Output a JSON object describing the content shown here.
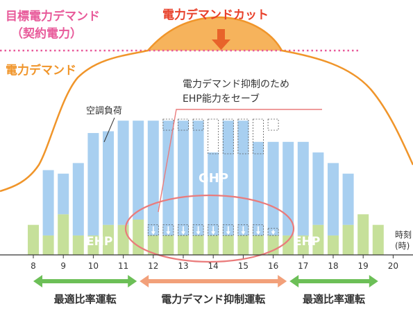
{
  "chart_data": {
    "type": "bar",
    "x_ticks": [
      "8",
      "9",
      "10",
      "11",
      "12",
      "13",
      "14",
      "15",
      "16",
      "17",
      "18",
      "19",
      "20"
    ],
    "x_start": 7.8,
    "x_end": 20.2,
    "y_range": [
      0,
      100
    ],
    "x_axis_label": [
      "時刻",
      "(時)"
    ],
    "series": [
      {
        "name": "EHP",
        "color": "#c6e09a",
        "values": [
          {
            "x": 8.0,
            "y": 17
          },
          {
            "x": 8.5,
            "y": 11
          },
          {
            "x": 9.0,
            "y": 23
          },
          {
            "x": 9.5,
            "y": 11
          },
          {
            "x": 10.0,
            "y": 11
          },
          {
            "x": 10.5,
            "y": 17
          },
          {
            "x": 11.0,
            "y": 17
          },
          {
            "x": 11.5,
            "y": 20
          },
          {
            "x": 12.0,
            "y": 11
          },
          {
            "x": 12.5,
            "y": 11
          },
          {
            "x": 13.0,
            "y": 11
          },
          {
            "x": 13.5,
            "y": 11
          },
          {
            "x": 14.0,
            "y": 11
          },
          {
            "x": 14.5,
            "y": 11
          },
          {
            "x": 15.0,
            "y": 11
          },
          {
            "x": 15.5,
            "y": 11
          },
          {
            "x": 16.0,
            "y": 11
          },
          {
            "x": 16.5,
            "y": 11
          },
          {
            "x": 17.0,
            "y": 11
          },
          {
            "x": 17.5,
            "y": 17
          },
          {
            "x": 18.0,
            "y": 11
          },
          {
            "x": 18.5,
            "y": 17
          },
          {
            "x": 19.0,
            "y": 23
          },
          {
            "x": 19.5,
            "y": 17
          }
        ]
      },
      {
        "name": "GHP",
        "color": "#a8cff0",
        "values": [
          {
            "x": 8.0,
            "y": 0
          },
          {
            "x": 8.5,
            "y": 37
          },
          {
            "x": 9.0,
            "y": 23
          },
          {
            "x": 9.5,
            "y": 41
          },
          {
            "x": 10.0,
            "y": 58
          },
          {
            "x": 10.5,
            "y": 53
          },
          {
            "x": 11.0,
            "y": 59
          },
          {
            "x": 11.5,
            "y": 56
          },
          {
            "x": 12.0,
            "y": 65
          },
          {
            "x": 12.5,
            "y": 65
          },
          {
            "x": 13.0,
            "y": 65
          },
          {
            "x": 13.5,
            "y": 65
          },
          {
            "x": 14.0,
            "y": 47
          },
          {
            "x": 14.5,
            "y": 65
          },
          {
            "x": 15.0,
            "y": 65
          },
          {
            "x": 15.5,
            "y": 53
          },
          {
            "x": 16.0,
            "y": 53
          },
          {
            "x": 16.5,
            "y": 53
          },
          {
            "x": 17.0,
            "y": 53
          },
          {
            "x": 17.5,
            "y": 41
          },
          {
            "x": 18.0,
            "y": 41
          },
          {
            "x": 18.5,
            "y": 29
          },
          {
            "x": 19.0,
            "y": 0
          },
          {
            "x": 19.5,
            "y": 0
          }
        ]
      },
      {
        "name": "EHP能力をセーブ",
        "color": "#555555",
        "values": [
          {
            "x": 12.0,
            "y": 6
          },
          {
            "x": 12.5,
            "y": 6
          },
          {
            "x": 13.0,
            "y": 6
          },
          {
            "x": 13.5,
            "y": 6
          },
          {
            "x": 14.0,
            "y": 6
          },
          {
            "x": 14.5,
            "y": 6
          },
          {
            "x": 15.0,
            "y": 6
          },
          {
            "x": 15.5,
            "y": 6
          },
          {
            "x": 16.0,
            "y": 4
          }
        ]
      }
    ],
    "curve_labels": {
      "target": "目標電力デマンド",
      "target_sub": "（契約電力）",
      "demand": "電力デマンド",
      "cut": "電力デマンドカット"
    },
    "annotations": {
      "callout_line1": "電力デマンド抑制のため",
      "callout_line2": "EHP能力をセーブ",
      "aircon_load": "空調負荷",
      "ghp_label": "GHP",
      "ehp_left": "EHP",
      "ehp_right": "EHP"
    },
    "phases": [
      {
        "label": "最適比率運転",
        "from": 8.0,
        "to": 11.5,
        "color": "#6cbf57"
      },
      {
        "label": "電力デマンド抑制運転",
        "from": 11.5,
        "to": 16.5,
        "color": "#f2a07a"
      },
      {
        "label": "最適比率運転",
        "from": 16.5,
        "to": 19.5,
        "color": "#6cbf57"
      }
    ],
    "colors": {
      "target_line": "#e85a9a",
      "demand_line": "#f0952a",
      "cut_fill": "#f6b35c",
      "cut_arrow": "#e8632a",
      "ellipse": "#ea7b7b",
      "ghp_text": "#ffffff",
      "ehp_text": "#ffffff"
    }
  }
}
